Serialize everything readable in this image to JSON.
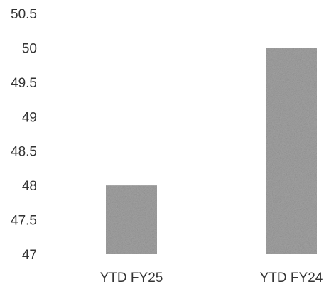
{
  "chart_data": {
    "type": "bar",
    "title": "",
    "xlabel": "",
    "ylabel": "",
    "categories": [
      "YTD FY25",
      "YTD FY24"
    ],
    "values": [
      48,
      50
    ],
    "ylim": [
      47,
      50.5
    ],
    "yticks": [
      "50.5",
      "50",
      "49.5",
      "49",
      "48.5",
      "48",
      "47.5",
      "47"
    ],
    "grid": false,
    "legend": "none",
    "bar_color": "#a3a3a3"
  }
}
